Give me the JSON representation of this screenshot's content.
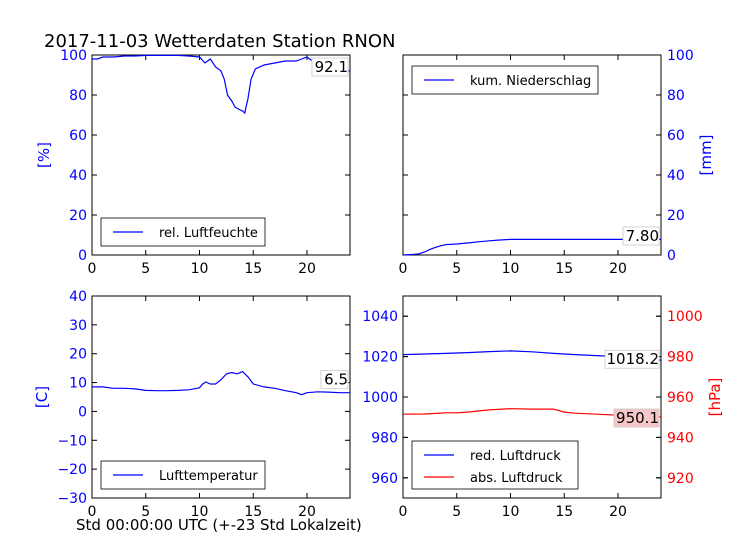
{
  "title": "2017-11-03 Wetterdaten Station RNON",
  "bottom_xlabel": "Std 00:00:00 UTC (+-23 Std Lokalzeit)",
  "colors": {
    "blue": "#0000ff",
    "red": "#ff0000",
    "black": "#000000"
  },
  "chart_data": [
    {
      "id": "humidity",
      "type": "line",
      "xlim": [
        0,
        24
      ],
      "ylim": [
        0,
        100
      ],
      "xticks": [
        0,
        5,
        10,
        15,
        20
      ],
      "yticks": [
        0,
        20,
        40,
        60,
        80,
        100
      ],
      "ylabel": "[%]",
      "legend": "bottom-left",
      "current_label": "92.1",
      "series": [
        {
          "name": "rel. Luftfeuchte",
          "color": "#0000ff",
          "x": [
            0,
            0.5,
            1,
            2,
            3,
            4,
            5,
            6,
            7,
            8,
            9,
            10,
            10.5,
            11,
            11.5,
            12,
            12.3,
            12.6,
            13,
            13.3,
            13.6,
            14,
            14.2,
            14.5,
            14.8,
            15.2,
            16,
            17,
            18,
            19,
            19.5,
            20,
            20.5,
            21,
            22,
            23,
            24
          ],
          "y": [
            98,
            98,
            99,
            99,
            99.5,
            99.5,
            99.8,
            99.8,
            99.8,
            99.8,
            99.5,
            99,
            96,
            98,
            94,
            92,
            88,
            80,
            77,
            74,
            73,
            72,
            71,
            78,
            88,
            93,
            95,
            96,
            97,
            97,
            98,
            99,
            97,
            98,
            94,
            92,
            92.1
          ]
        }
      ]
    },
    {
      "id": "precip",
      "type": "line",
      "xlim": [
        0,
        24
      ],
      "ylim": [
        0,
        100
      ],
      "xticks": [
        0,
        5,
        10,
        15,
        20
      ],
      "yticks": [
        0,
        20,
        40,
        60,
        80,
        100
      ],
      "ylabel": "[mm]",
      "legend": "top-left",
      "current_label": "7.80",
      "series": [
        {
          "name": "kum. Niederschlag",
          "color": "#0000ff",
          "x": [
            0,
            1,
            1.5,
            2,
            2.5,
            3,
            3.5,
            4,
            5,
            6,
            7,
            8,
            9,
            10,
            12,
            16,
            20,
            24
          ],
          "y": [
            0,
            0.3,
            0.6,
            1.5,
            2.8,
            3.8,
            4.6,
            5.2,
            5.5,
            6.0,
            6.6,
            7.1,
            7.5,
            7.8,
            7.8,
            7.8,
            7.8,
            7.8
          ]
        }
      ]
    },
    {
      "id": "temperature",
      "type": "line",
      "xlim": [
        0,
        24
      ],
      "ylim": [
        -30,
        40
      ],
      "xticks": [
        0,
        5,
        10,
        15,
        20
      ],
      "yticks": [
        -30,
        -20,
        -10,
        0,
        10,
        20,
        30,
        40
      ],
      "ylabel": "[C]",
      "legend": "bottom-left",
      "current_label": "6.5",
      "series": [
        {
          "name": "Lufttemperatur",
          "color": "#0000ff",
          "x": [
            0,
            1,
            2,
            3,
            4,
            5,
            6,
            7,
            8,
            9,
            10,
            10.3,
            10.6,
            11,
            11.5,
            12,
            12.5,
            13,
            13.5,
            14,
            14.5,
            15,
            16,
            17,
            18,
            19,
            19.5,
            20,
            21,
            22,
            23,
            24
          ],
          "y": [
            8.5,
            8.5,
            8,
            8,
            7.8,
            7.3,
            7.2,
            7.2,
            7.3,
            7.5,
            8.2,
            9.5,
            10.2,
            9.5,
            9.5,
            11,
            13,
            13.5,
            13,
            13.8,
            12,
            9.5,
            8.5,
            8,
            7.2,
            6.5,
            5.8,
            6.5,
            6.8,
            6.7,
            6.5,
            6.5
          ]
        }
      ]
    },
    {
      "id": "pressure",
      "type": "line",
      "xlim": [
        0,
        24
      ],
      "ylim": [
        950,
        1050
      ],
      "ylim_right": [
        910,
        1010
      ],
      "xticks": [
        0,
        5,
        10,
        15,
        20
      ],
      "yticks": [
        960,
        980,
        1000,
        1020,
        1040
      ],
      "yticks_right": [
        920,
        940,
        960,
        980,
        1000
      ],
      "ylabel_right": "[hPa]",
      "legend": "bottom-left",
      "current_label_red": "1018.2",
      "current_label_abs": "950.1",
      "series": [
        {
          "name": "red. Luftdruck",
          "color": "#0000ff",
          "axis": "left",
          "x": [
            0,
            2,
            4,
            6,
            8,
            10,
            12,
            14,
            16,
            18,
            20,
            22,
            24
          ],
          "y": [
            1021,
            1021.3,
            1021.6,
            1022,
            1022.5,
            1022.8,
            1022.4,
            1021.6,
            1021,
            1020.5,
            1020,
            1019,
            1018.2
          ]
        },
        {
          "name": "abs. Luftdruck",
          "color": "#ff0000",
          "axis": "right",
          "x": [
            0,
            2,
            4,
            5,
            6,
            8,
            10,
            12,
            14,
            15,
            16,
            18,
            20,
            22,
            24
          ],
          "y": [
            951.5,
            951.6,
            952.2,
            952.2,
            952.5,
            953.6,
            954.2,
            954,
            954,
            952.5,
            952,
            951.5,
            951,
            950.5,
            950.1
          ]
        }
      ]
    }
  ]
}
